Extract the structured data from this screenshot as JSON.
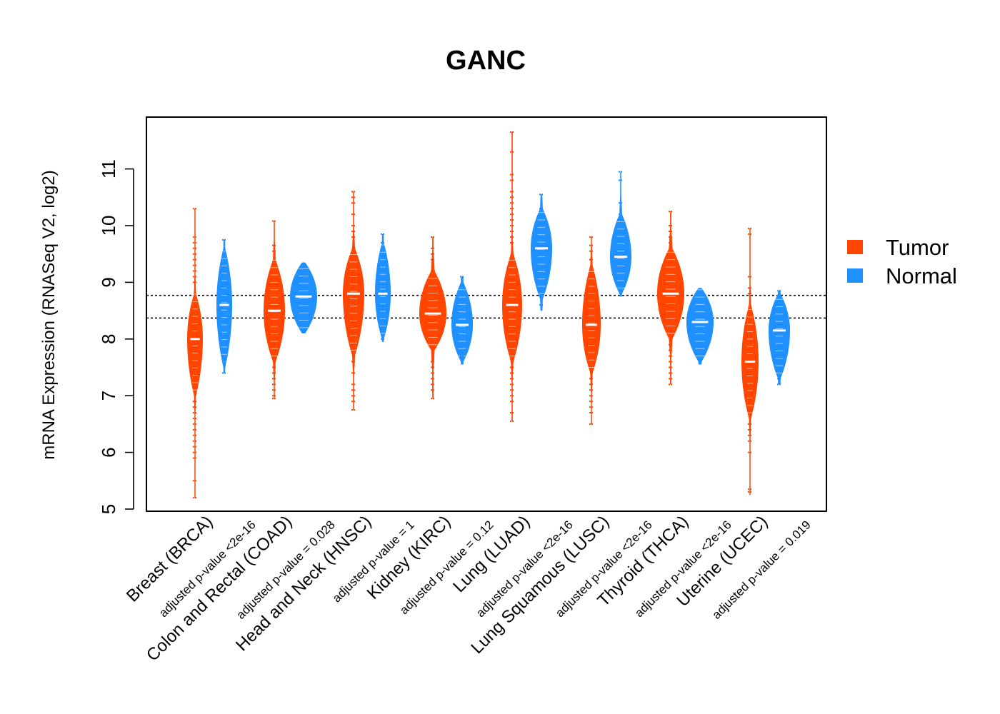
{
  "chart_data": {
    "type": "violin",
    "title": "GANC",
    "ylabel": "mRNA Expression (RNASeq V2, log2)",
    "xlabel": "",
    "ylim": [
      5,
      11.8
    ],
    "yticks": [
      5,
      6,
      7,
      8,
      9,
      10,
      11
    ],
    "grid": false,
    "legend_position": "right",
    "reference_lines": [
      8.37,
      8.77
    ],
    "colors": {
      "Tumor": "#FF4500",
      "Normal": "#1E90FF"
    },
    "legend": [
      "Tumor",
      "Normal"
    ],
    "categories": [
      {
        "label": "Breast (BRCA)",
        "pvalue": "adjusted p-value <2e-16",
        "tumor": {
          "median": 8.0,
          "min": 5.2,
          "max": 10.3,
          "core_lo": 7.0,
          "core_hi": 8.8,
          "width": 0.55,
          "outliers": [
            10.3,
            9.8,
            9.7,
            9.6,
            9.5,
            9.4,
            9.3,
            9.2,
            9.1,
            9.0,
            6.9,
            6.8,
            6.7,
            6.6,
            6.5,
            6.4,
            6.3,
            6.2,
            6.1,
            6.0,
            5.9,
            5.5,
            5.2
          ]
        },
        "normal": {
          "median": 8.6,
          "min": 7.4,
          "max": 9.75,
          "core_lo": 7.5,
          "core_hi": 9.6,
          "width": 0.55,
          "outliers": [
            9.75,
            9.5,
            7.6,
            7.4
          ]
        }
      },
      {
        "label": "Colon and Rectal (COAD)",
        "pvalue": "adjusted p-value = 0.028",
        "tumor": {
          "median": 8.5,
          "min": 6.95,
          "max": 10.08,
          "core_lo": 7.6,
          "core_hi": 9.4,
          "width": 0.75,
          "outliers": [
            10.08,
            9.65,
            9.55,
            7.5,
            7.4,
            7.3,
            7.2,
            7.1,
            7.0,
            6.95
          ]
        },
        "normal": {
          "median": 8.75,
          "min": 8.1,
          "max": 9.35,
          "core_lo": 8.1,
          "core_hi": 9.35,
          "width": 0.95,
          "outliers": []
        }
      },
      {
        "label": "Head and Neck (HNSC)",
        "pvalue": "adjusted p-value = 1",
        "tumor": {
          "median": 8.8,
          "min": 6.75,
          "max": 10.6,
          "core_lo": 7.7,
          "core_hi": 9.6,
          "width": 0.75,
          "outliers": [
            10.6,
            10.5,
            10.4,
            10.2,
            10.0,
            9.9,
            9.8,
            7.6,
            7.4,
            7.2,
            7.1,
            7.0,
            6.9,
            6.75
          ]
        },
        "normal": {
          "median": 8.8,
          "min": 7.95,
          "max": 9.85,
          "core_lo": 8.0,
          "core_hi": 9.7,
          "width": 0.55,
          "outliers": [
            9.85,
            9.7,
            8.0
          ]
        }
      },
      {
        "label": "Kidney (KIRC)",
        "pvalue": "adjusted p-value = 0.12",
        "tumor": {
          "median": 8.45,
          "min": 6.95,
          "max": 9.8,
          "core_lo": 7.8,
          "core_hi": 9.2,
          "width": 0.95,
          "outliers": [
            9.8,
            9.6,
            9.5,
            9.4,
            7.6,
            7.5,
            7.4,
            7.3,
            7.2,
            7.1,
            6.95
          ]
        },
        "normal": {
          "median": 8.25,
          "min": 7.55,
          "max": 9.1,
          "core_lo": 7.6,
          "core_hi": 9.0,
          "width": 0.75,
          "outliers": [
            9.1,
            7.7
          ]
        }
      },
      {
        "label": "Lung (LUAD)",
        "pvalue": "adjusted p-value <2e-16",
        "tumor": {
          "median": 8.6,
          "min": 6.55,
          "max": 11.65,
          "core_lo": 7.6,
          "core_hi": 9.5,
          "width": 0.7,
          "outliers": [
            11.65,
            11.3,
            10.9,
            10.8,
            10.6,
            10.5,
            10.4,
            10.3,
            10.2,
            10.1,
            10.0,
            9.9,
            9.8,
            9.7,
            7.5,
            7.4,
            7.3,
            7.2,
            7.1,
            7.0,
            6.9,
            6.7,
            6.55
          ]
        },
        "normal": {
          "median": 9.6,
          "min": 8.5,
          "max": 10.55,
          "core_lo": 8.7,
          "core_hi": 10.3,
          "width": 0.75,
          "outliers": [
            10.55,
            10.3,
            8.6
          ]
        }
      },
      {
        "label": "Lung Squamous (LUSC)",
        "pvalue": "adjusted p-value <2e-16",
        "tumor": {
          "median": 8.25,
          "min": 6.5,
          "max": 9.8,
          "core_lo": 7.4,
          "core_hi": 9.3,
          "width": 0.65,
          "outliers": [
            9.8,
            9.65,
            9.55,
            9.4,
            7.3,
            7.2,
            7.1,
            7.0,
            6.9,
            6.8,
            6.7,
            6.5
          ]
        },
        "normal": {
          "median": 9.45,
          "min": 8.75,
          "max": 10.95,
          "core_lo": 8.8,
          "core_hi": 10.2,
          "width": 0.75,
          "outliers": [
            10.95,
            10.8,
            10.4,
            10.2
          ]
        }
      },
      {
        "label": "Thyroid (THCA)",
        "pvalue": "adjusted p-value <2e-16",
        "tumor": {
          "median": 8.8,
          "min": 7.2,
          "max": 10.25,
          "core_lo": 8.0,
          "core_hi": 9.6,
          "width": 0.95,
          "outliers": [
            10.25,
            10.0,
            9.9,
            9.8,
            9.7,
            7.9,
            7.8,
            7.7,
            7.6,
            7.5,
            7.4,
            7.3,
            7.2
          ]
        },
        "normal": {
          "median": 8.3,
          "min": 7.55,
          "max": 8.9,
          "core_lo": 7.6,
          "core_hi": 8.9,
          "width": 0.95,
          "outliers": []
        }
      },
      {
        "label": "Uterine (UCEC)",
        "pvalue": "adjusted p-value = 0.019",
        "tumor": {
          "median": 7.6,
          "min": 5.25,
          "max": 9.95,
          "core_lo": 6.6,
          "core_hi": 8.6,
          "width": 0.6,
          "outliers": [
            9.95,
            9.85,
            9.1,
            8.9,
            8.8,
            6.5,
            6.4,
            6.3,
            6.2,
            6.0,
            5.35,
            5.3
          ]
        },
        "normal": {
          "median": 8.15,
          "min": 7.2,
          "max": 8.85,
          "core_lo": 7.3,
          "core_hi": 8.8,
          "width": 0.75,
          "outliers": [
            8.85,
            7.3,
            7.2
          ]
        }
      }
    ]
  }
}
